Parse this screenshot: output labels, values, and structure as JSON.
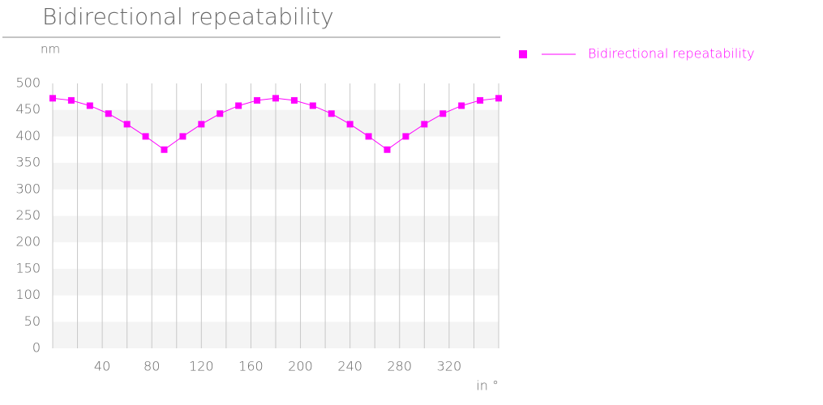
{
  "chart_data": {
    "type": "line",
    "title": "Bidirectional repeatability",
    "y_label": "nm",
    "x_label": "in °",
    "x": [
      0,
      15,
      30,
      45,
      60,
      75,
      90,
      105,
      120,
      135,
      150,
      165,
      180,
      195,
      210,
      225,
      240,
      255,
      270,
      285,
      300,
      315,
      330,
      345,
      360
    ],
    "series": [
      {
        "name": "Bidirectional repeatability",
        "color": "#ff00ff",
        "values": [
          472,
          468,
          458,
          443,
          423,
          400,
          375,
          400,
          423,
          443,
          458,
          468,
          472,
          468,
          458,
          443,
          423,
          400,
          375,
          400,
          423,
          443,
          458,
          468,
          472
        ]
      }
    ],
    "xlim": [
      0,
      360
    ],
    "xticks": [
      40,
      80,
      120,
      160,
      200,
      240,
      280,
      320
    ],
    "xgrid": [
      0,
      20,
      40,
      60,
      80,
      100,
      120,
      140,
      160,
      180,
      200,
      220,
      240,
      260,
      280,
      300,
      320,
      340,
      360
    ],
    "ylim": [
      0,
      500
    ],
    "yticks": [
      0,
      50,
      100,
      150,
      200,
      250,
      300,
      350,
      400,
      450,
      500
    ],
    "banded_grid": true,
    "legend": "right"
  }
}
